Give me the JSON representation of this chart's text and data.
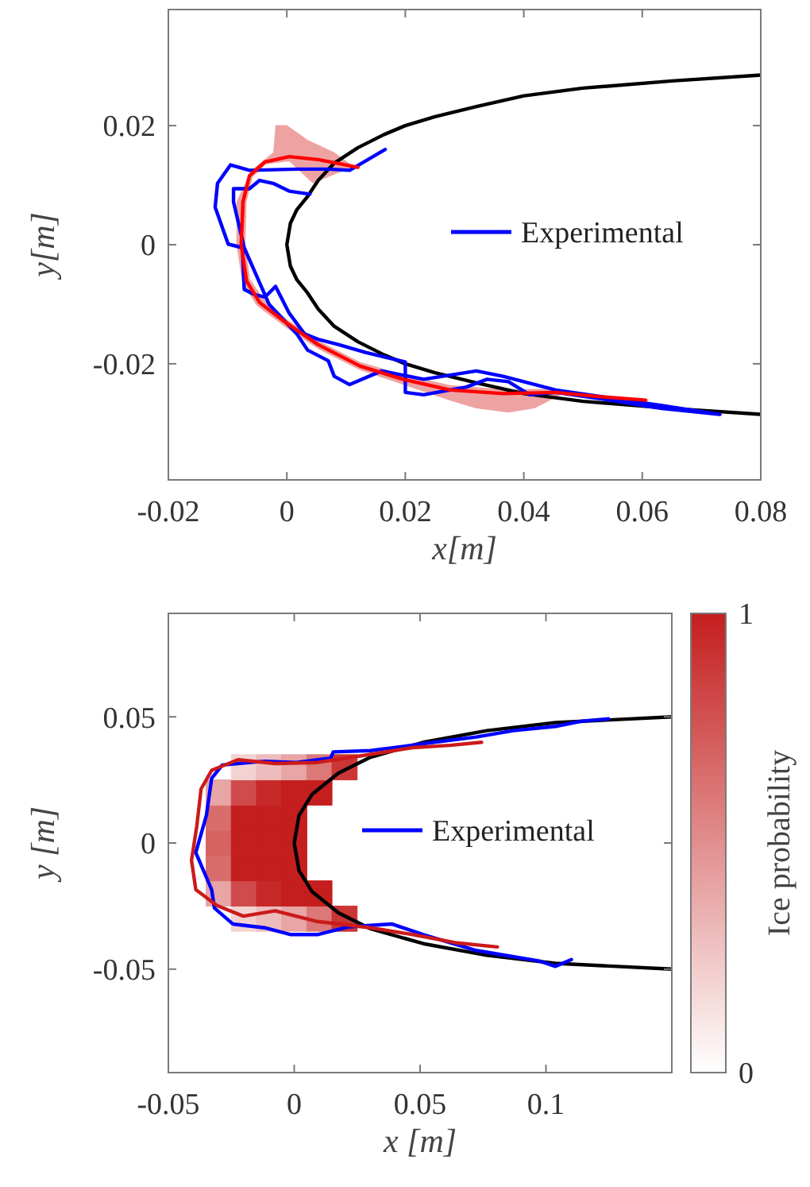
{
  "chart_data": [
    {
      "type": "line",
      "xlabel": "x[m]",
      "ylabel": "y[m]",
      "xlim": [
        -0.02,
        0.08
      ],
      "ylim": [
        -0.0395,
        0.0395
      ],
      "xticks": [
        -0.02,
        0,
        0.02,
        0.04,
        0.06,
        0.08
      ],
      "yticks": [
        -0.02,
        0,
        0.02
      ],
      "legend": "right",
      "series": [
        {
          "type": "area",
          "color": "#eea3a3",
          "x": [
            0.0115,
            0.008,
            0.0035,
            0,
            -0.0019,
            -0.0023,
            -0.006,
            -0.0085,
            -0.0085,
            -0.0075,
            -0.005,
            0,
            0.0053,
            0.0124,
            0.0196,
            0.0276,
            0.032,
            0.0374,
            0.0418,
            0.0463,
            0.0526,
            0.0454,
            0.0365,
            0.0276,
            0.0196,
            0.0124,
            0.0053,
            0,
            -0.004,
            -0.0062,
            -0.007,
            -0.0068,
            -0.0058,
            -0.0035,
            0.0004,
            0.0044,
            0.0088
          ],
          "values": [
            0.013,
            0.0155,
            0.0176,
            0.0201,
            0.0201,
            0.0155,
            0.0125,
            0.0072,
            0,
            -0.0065,
            -0.0103,
            -0.014,
            -0.0175,
            -0.0211,
            -0.0235,
            -0.0262,
            -0.0275,
            -0.0282,
            -0.0275,
            -0.0252,
            -0.0255,
            -0.0242,
            -0.0243,
            -0.0236,
            -0.0218,
            -0.0197,
            -0.0161,
            -0.0125,
            -0.009,
            -0.0058,
            0,
            0.0072,
            0.0113,
            0.0135,
            0.014,
            0.0103,
            0.0121
          ]
        },
        {
          "color": "#000000",
          "x": [
            0.08,
            0.065,
            0.05,
            0.04,
            0.032,
            0.025,
            0.02,
            0.0164,
            0.012,
            0.008,
            0.0053,
            0.0035,
            0.0017,
            0.0006,
            0,
            0.0006,
            0.0017,
            0.0035,
            0.0053,
            0.008,
            0.012,
            0.0164,
            0.02,
            0.025,
            0.032,
            0.04,
            0.05,
            0.065,
            0.08
          ],
          "values": [
            0.0285,
            0.0275,
            0.0263,
            0.025,
            0.0232,
            0.0215,
            0.02,
            0.0185,
            0.0163,
            0.0137,
            0.0108,
            0.0081,
            0.0059,
            0.0036,
            0,
            -0.0036,
            -0.0059,
            -0.0081,
            -0.0108,
            -0.0137,
            -0.0163,
            -0.0185,
            -0.02,
            -0.0215,
            -0.0232,
            -0.025,
            -0.0263,
            -0.0275,
            -0.0285
          ]
        },
        {
          "name": "Experimental",
          "color": "#0000ff",
          "x": [
            0.0166,
            0.0106,
            0.0071,
            0.0017,
            -0.0063,
            -0.0095,
            -0.0117,
            -0.0121,
            -0.0099,
            -0.0075,
            -0.0072,
            -0.0054,
            -0.0037,
            -0.0019,
            0.0004,
            0.003,
            0.0053,
            0.0088,
            0.0133,
            0.02,
            0.02,
            0.0231,
            0.0303,
            0.0338,
            0.0374,
            0.041,
            0.0454,
            0.0544,
            0.0633,
            0.0731,
            0.0633,
            0.0454,
            0.0365,
            0.032,
            0.0231,
            0.016,
            0.0106,
            0.008,
            0.007,
            0.0035,
            0.0017,
            -0.003,
            -0.0072,
            -0.009,
            -0.009,
            -0.0063,
            -0.0046,
            -0.0023,
            0.0004,
            0.0039
          ],
          "values": [
            0.016,
            0.0125,
            0.0127,
            0.0127,
            0.0125,
            0.0134,
            0.0103,
            0.0063,
            0.0001,
            -0.0005,
            -0.0075,
            -0.0084,
            -0.0088,
            -0.007,
            -0.0115,
            -0.015,
            -0.0159,
            -0.0168,
            -0.0181,
            -0.0197,
            -0.0248,
            -0.0252,
            -0.0239,
            -0.0226,
            -0.023,
            -0.0252,
            -0.0248,
            -0.0261,
            -0.0275,
            -0.0285,
            -0.027,
            -0.0244,
            -0.0221,
            -0.0212,
            -0.0226,
            -0.0212,
            -0.0235,
            -0.0221,
            -0.0195,
            -0.0177,
            -0.015,
            -0.01,
            -0.0005,
            0.0072,
            0.0094,
            0.0094,
            0.0108,
            0.0103,
            0.009,
            0.0085
          ]
        },
        {
          "color": "#ff0000",
          "x": [
            0.012,
            0.0053,
            0.0004,
            -0.0037,
            -0.0063,
            -0.0074,
            -0.0077,
            -0.0068,
            -0.0046,
            0,
            0.0053,
            0.0124,
            0.0196,
            0.0276,
            0.0365,
            0.0454,
            0.0526,
            0.0606
          ],
          "values": [
            0.013,
            0.0143,
            0.0148,
            0.0139,
            0.0116,
            0.0072,
            0,
            -0.0061,
            -0.0097,
            -0.0132,
            -0.0168,
            -0.0204,
            -0.0226,
            -0.0244,
            -0.025,
            -0.0248,
            -0.0255,
            -0.0261
          ]
        }
      ]
    },
    {
      "type": "line",
      "xlabel": "x [m]",
      "ylabel": "y [m]",
      "clabel": "Ice probability",
      "clim": [
        0,
        1
      ],
      "cticks": [
        0,
        1
      ],
      "xlim": [
        -0.05,
        0.15
      ],
      "ylim": [
        -0.091,
        0.091
      ],
      "xticks": [
        -0.05,
        0,
        0.05,
        0.1
      ],
      "yticks": [
        -0.05,
        0,
        0.05
      ],
      "legend": "right",
      "series": [
        {
          "type": "scatter",
          "marker": "square",
          "colors": [
            "#e7a5a5",
            "#d96d6d",
            "#d66262",
            "#d96d6d",
            "#e7a5a5",
            "#f3d2d2",
            "#d04b4b",
            "#c41e1e",
            "#c41e1e",
            "#c41e1e",
            "#d04b4b",
            "#f3d2d2",
            "#edbcbc",
            "#c72929",
            "#c41e1e",
            "#c41e1e",
            "#c41e1e",
            "#c72929",
            "#edbcbc",
            "#e7a5a5",
            "#c41e1e",
            "#c41e1e",
            "#c41e1e",
            "#c41e1e",
            "#c41e1e",
            "#e7a5a5",
            "#dc7878",
            "#c41e1e",
            "#c41e1e",
            "#dc7878",
            "#ca3535",
            "#ca3535"
          ],
          "x": [
            -0.03,
            -0.03,
            -0.03,
            -0.03,
            -0.03,
            -0.02,
            -0.02,
            -0.02,
            -0.02,
            -0.02,
            -0.02,
            -0.02,
            -0.01,
            -0.01,
            -0.01,
            -0.01,
            -0.01,
            -0.01,
            -0.01,
            0,
            0,
            0,
            0,
            0,
            0,
            0,
            0.01,
            0.01,
            0.01,
            0.01,
            0.02,
            0.02
          ],
          "values": [
            -0.02,
            -0.01,
            0,
            0.01,
            0.02,
            -0.03,
            -0.02,
            -0.01,
            0,
            0.01,
            0.02,
            0.03,
            -0.03,
            -0.02,
            -0.01,
            0,
            0.01,
            0.02,
            0.03,
            -0.03,
            -0.02,
            -0.01,
            0,
            0.01,
            0.02,
            0.03,
            -0.03,
            -0.02,
            0.02,
            0.03,
            -0.03,
            0.03
          ],
          "cvalues": [
            0.4,
            0.65,
            0.7,
            0.65,
            0.4,
            0.2,
            0.8,
            1,
            1,
            1,
            0.8,
            0.2,
            0.3,
            0.95,
            1,
            1,
            1,
            0.95,
            0.3,
            0.4,
            1,
            1,
            1,
            1,
            1,
            0.4,
            0.6,
            1,
            1,
            0.6,
            0.9,
            0.9
          ]
        },
        {
          "color": "#000000",
          "x": [
            0.15,
            0.1038,
            0.0765,
            0.0513,
            0.0303,
            0.0176,
            0.0071,
            0.0019,
            0,
            0.0019,
            0.0071,
            0.0176,
            0.0303,
            0.0513,
            0.0765,
            0.1038,
            0.15
          ],
          "values": [
            0.05,
            0.0477,
            0.0445,
            0.0399,
            0.034,
            0.0277,
            0.0193,
            0.0109,
            0,
            -0.0109,
            -0.0193,
            -0.0277,
            -0.034,
            -0.0399,
            -0.0445,
            -0.0477,
            -0.05
          ]
        },
        {
          "name": "Experimental",
          "color": "#0000ff",
          "x": [
            0.1248,
            0.1143,
            0.1038,
            0.087,
            0.0723,
            0.0555,
            0.0429,
            0.0303,
            0.0155,
            0.0145,
            0.0008,
            -0.0118,
            -0.0286,
            -0.0328,
            -0.0349,
            -0.0391,
            -0.0328,
            -0.0317,
            -0.0244,
            -0.0118,
            -0.0013,
            0.0092,
            0.0218,
            0.0387,
            0.0513,
            0.0618,
            0.0723,
            0.0849,
            0.0975,
            0.1038,
            0.1101
          ],
          "values": [
            0.0492,
            0.0483,
            0.0462,
            0.0445,
            0.042,
            0.0399,
            0.0382,
            0.0366,
            0.0361,
            0.0336,
            0.0319,
            0.0324,
            0.0309,
            0.0256,
            0.0109,
            -0.0038,
            -0.0185,
            -0.0258,
            -0.0321,
            -0.0336,
            -0.0363,
            -0.0363,
            -0.0332,
            -0.0321,
            -0.0363,
            -0.0395,
            -0.0426,
            -0.0447,
            -0.0468,
            -0.0489,
            -0.0462
          ]
        },
        {
          "color": "#cc1a1a",
          "x": [
            0.0744,
            0.0618,
            0.0471,
            0.0303,
            0.0092,
            -0.0076,
            -0.0223,
            -0.0328,
            -0.037,
            -0.0387,
            -0.0408,
            -0.0391,
            -0.0307,
            -0.0202,
            -0.0076,
            0.0092,
            0.0303,
            0.0471,
            0.0639,
            0.0807
          ],
          "values": [
            0.0399,
            0.0387,
            0.0378,
            0.0351,
            0.0319,
            0.0315,
            0.033,
            0.0288,
            0.0214,
            0.0067,
            -0.0069,
            -0.0185,
            -0.0248,
            -0.029,
            -0.0269,
            -0.0311,
            -0.0336,
            -0.0363,
            -0.0395,
            -0.0412
          ]
        }
      ]
    }
  ]
}
